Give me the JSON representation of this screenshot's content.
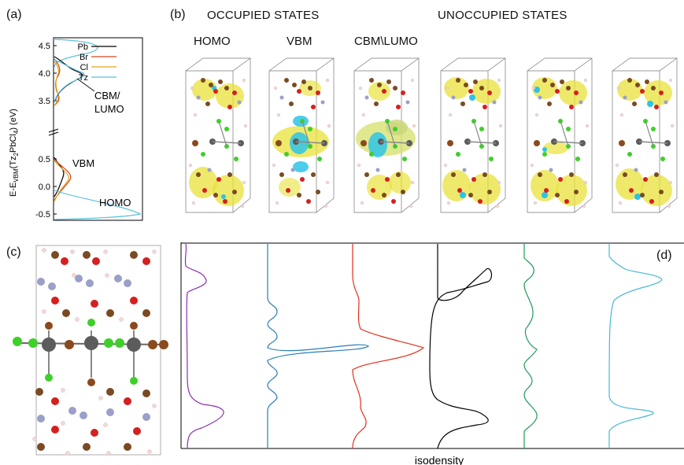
{
  "panels": {
    "a": "(a)",
    "b": "(b)",
    "c": "(c)",
    "d": "(d)"
  },
  "panel_b": {
    "header_occupied": "OCCUPIED STATES",
    "header_unoccupied": "UNOCCUPIED STATES",
    "sub_homo": "HOMO",
    "sub_vbm": "VBM",
    "sub_cbm_lumo": "CBM\\LUMO"
  },
  "panel_a": {
    "ylabel": "E-E",
    "ylabel_sub": "VBM",
    "ylabel_paren": "(Tz",
    "ylabel_sub2": "2",
    "ylabel_mid": "PbCl",
    "ylabel_sub4": "4",
    "ylabel_end": ") (eV)",
    "ticks": [
      "4.5",
      "4.0",
      "3.5",
      "0.5",
      "0.0",
      "-0.5"
    ],
    "legend": [
      {
        "name": "Pb",
        "color": "#000000"
      },
      {
        "name": "Br",
        "color": "#d2451e"
      },
      {
        "name": "Cl",
        "color": "#e8a419"
      },
      {
        "name": "Tz",
        "color": "#5bc1dc"
      }
    ],
    "annotations": {
      "cbm_line1": "CBM/",
      "cbm_line2": "LUMO",
      "vbm": "VBM",
      "homo": "HOMO"
    }
  },
  "panel_d": {
    "xlabel": "isodensity",
    "profiles": [
      {
        "name": "purple",
        "color": "#8b2fb0"
      },
      {
        "name": "blue",
        "color": "#2a7db8"
      },
      {
        "name": "red",
        "color": "#e0301e"
      },
      {
        "name": "black",
        "color": "#000000"
      },
      {
        "name": "green",
        "color": "#1e9a5a"
      },
      {
        "name": "cyan",
        "color": "#49b7d8"
      }
    ]
  },
  "colors": {
    "density_yellow": "#e8e23a",
    "density_cyan": "#2bc4e8",
    "carbon": "#7a4a22",
    "nitrogen": "#9aa0c8",
    "oxygen": "#d42020",
    "chlorine": "#3fcf2a",
    "lead": "#5c5c5c",
    "bromine": "#8a4a1e",
    "hydrogen": "#f3d9d9"
  }
}
